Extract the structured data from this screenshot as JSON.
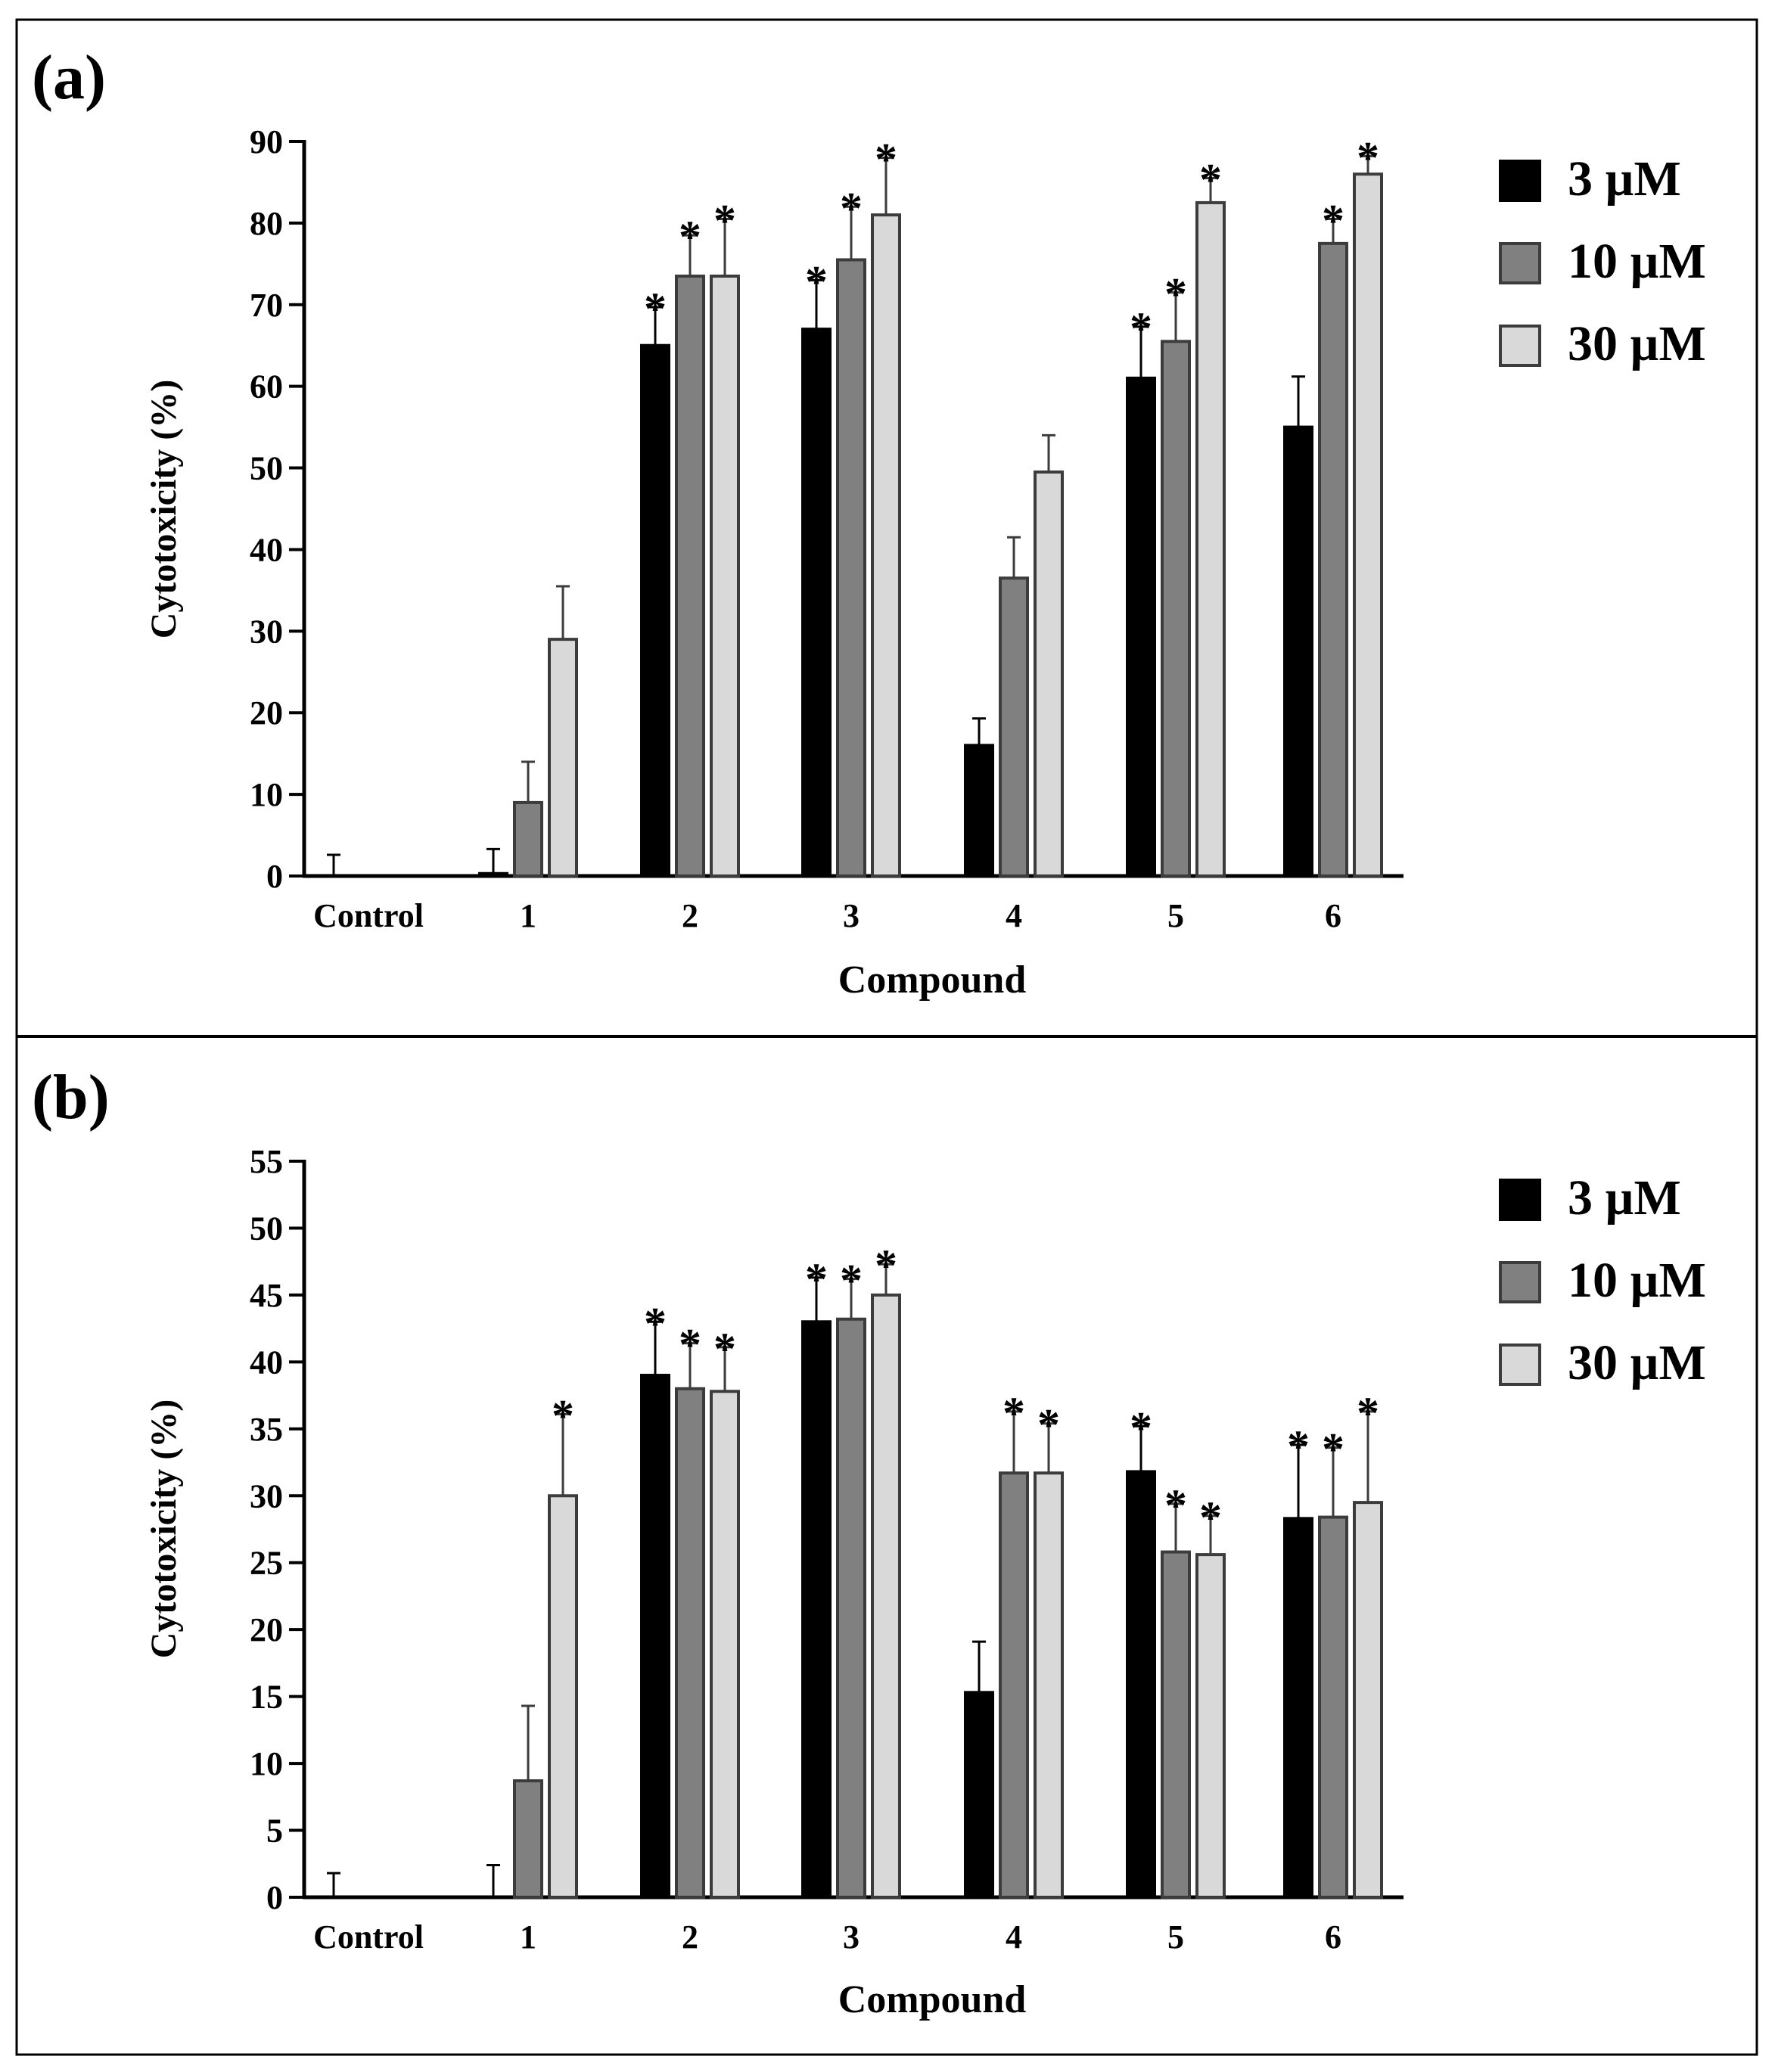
{
  "chart_data": [
    {
      "type": "bar",
      "panel_label": "(a)",
      "categories": [
        "Control",
        "1",
        "2",
        "3",
        "4",
        "5",
        "6"
      ],
      "xlabel": "Compound",
      "ylabel": "Cytotoxicity (%)",
      "ylim": [
        0,
        90
      ],
      "yticks": [
        "0",
        "10",
        "20",
        "30",
        "40",
        "50",
        "60",
        "70",
        "80",
        "90"
      ],
      "legend_position": "right",
      "grid": false,
      "series": [
        {
          "name": "3 µM",
          "color": "#000000",
          "values": [
            0,
            0.3,
            65,
            67,
            16,
            61,
            55
          ],
          "errors": [
            2.6,
            3.0,
            4.7,
            6.0,
            3.3,
            6.3,
            6.2
          ],
          "significant": [
            false,
            false,
            true,
            true,
            false,
            true,
            false
          ]
        },
        {
          "name": "10 µM",
          "color": "#808080",
          "values": [
            0,
            9,
            73.5,
            75.5,
            36.5,
            65.5,
            77.5
          ],
          "errors": [
            0,
            5,
            5,
            6.5,
            5,
            6,
            3
          ],
          "significant": [
            false,
            false,
            true,
            true,
            false,
            true,
            true
          ]
        },
        {
          "name": "30 µM",
          "color": "#d9d9d9",
          "values": [
            0,
            29,
            73.5,
            81,
            49.5,
            82.5,
            86
          ],
          "errors": [
            0,
            6.5,
            7,
            7,
            4.5,
            3,
            2.2
          ],
          "significant": [
            false,
            false,
            true,
            true,
            false,
            true,
            true
          ]
        }
      ],
      "significance_marker": "*"
    },
    {
      "type": "bar",
      "panel_label": "(b)",
      "categories": [
        "Control",
        "1",
        "2",
        "3",
        "4",
        "5",
        "6"
      ],
      "xlabel": "Compound",
      "ylabel": "Cytotoxicity (%)",
      "ylim": [
        0,
        55
      ],
      "yticks": [
        "0",
        "5",
        "10",
        "15",
        "20",
        "25",
        "30",
        "35",
        "40",
        "45",
        "50",
        "55"
      ],
      "legend_position": "right",
      "grid": false,
      "series": [
        {
          "name": "3 µM",
          "color": "#000000",
          "values": [
            0,
            0,
            39,
            43,
            15.3,
            31.8,
            28.3
          ],
          "errors": [
            1.8,
            2.4,
            4.0,
            3.3,
            3.8,
            3.4,
            5.5
          ],
          "significant": [
            false,
            false,
            true,
            true,
            false,
            true,
            true
          ]
        },
        {
          "name": "10 µM",
          "color": "#808080",
          "values": [
            0,
            8.7,
            38,
            43.2,
            31.7,
            25.8,
            28.4
          ],
          "errors": [
            0,
            5.6,
            3.4,
            3.0,
            4.6,
            3.6,
            5.2
          ],
          "significant": [
            false,
            false,
            true,
            true,
            true,
            true,
            true
          ]
        },
        {
          "name": "30 µM",
          "color": "#d9d9d9",
          "values": [
            0,
            30,
            37.8,
            45,
            31.7,
            25.6,
            29.5
          ],
          "errors": [
            0,
            6.1,
            3.3,
            2.3,
            3.7,
            2.9,
            6.8
          ],
          "significant": [
            false,
            true,
            true,
            true,
            true,
            true,
            true
          ]
        }
      ],
      "significance_marker": "*"
    }
  ]
}
